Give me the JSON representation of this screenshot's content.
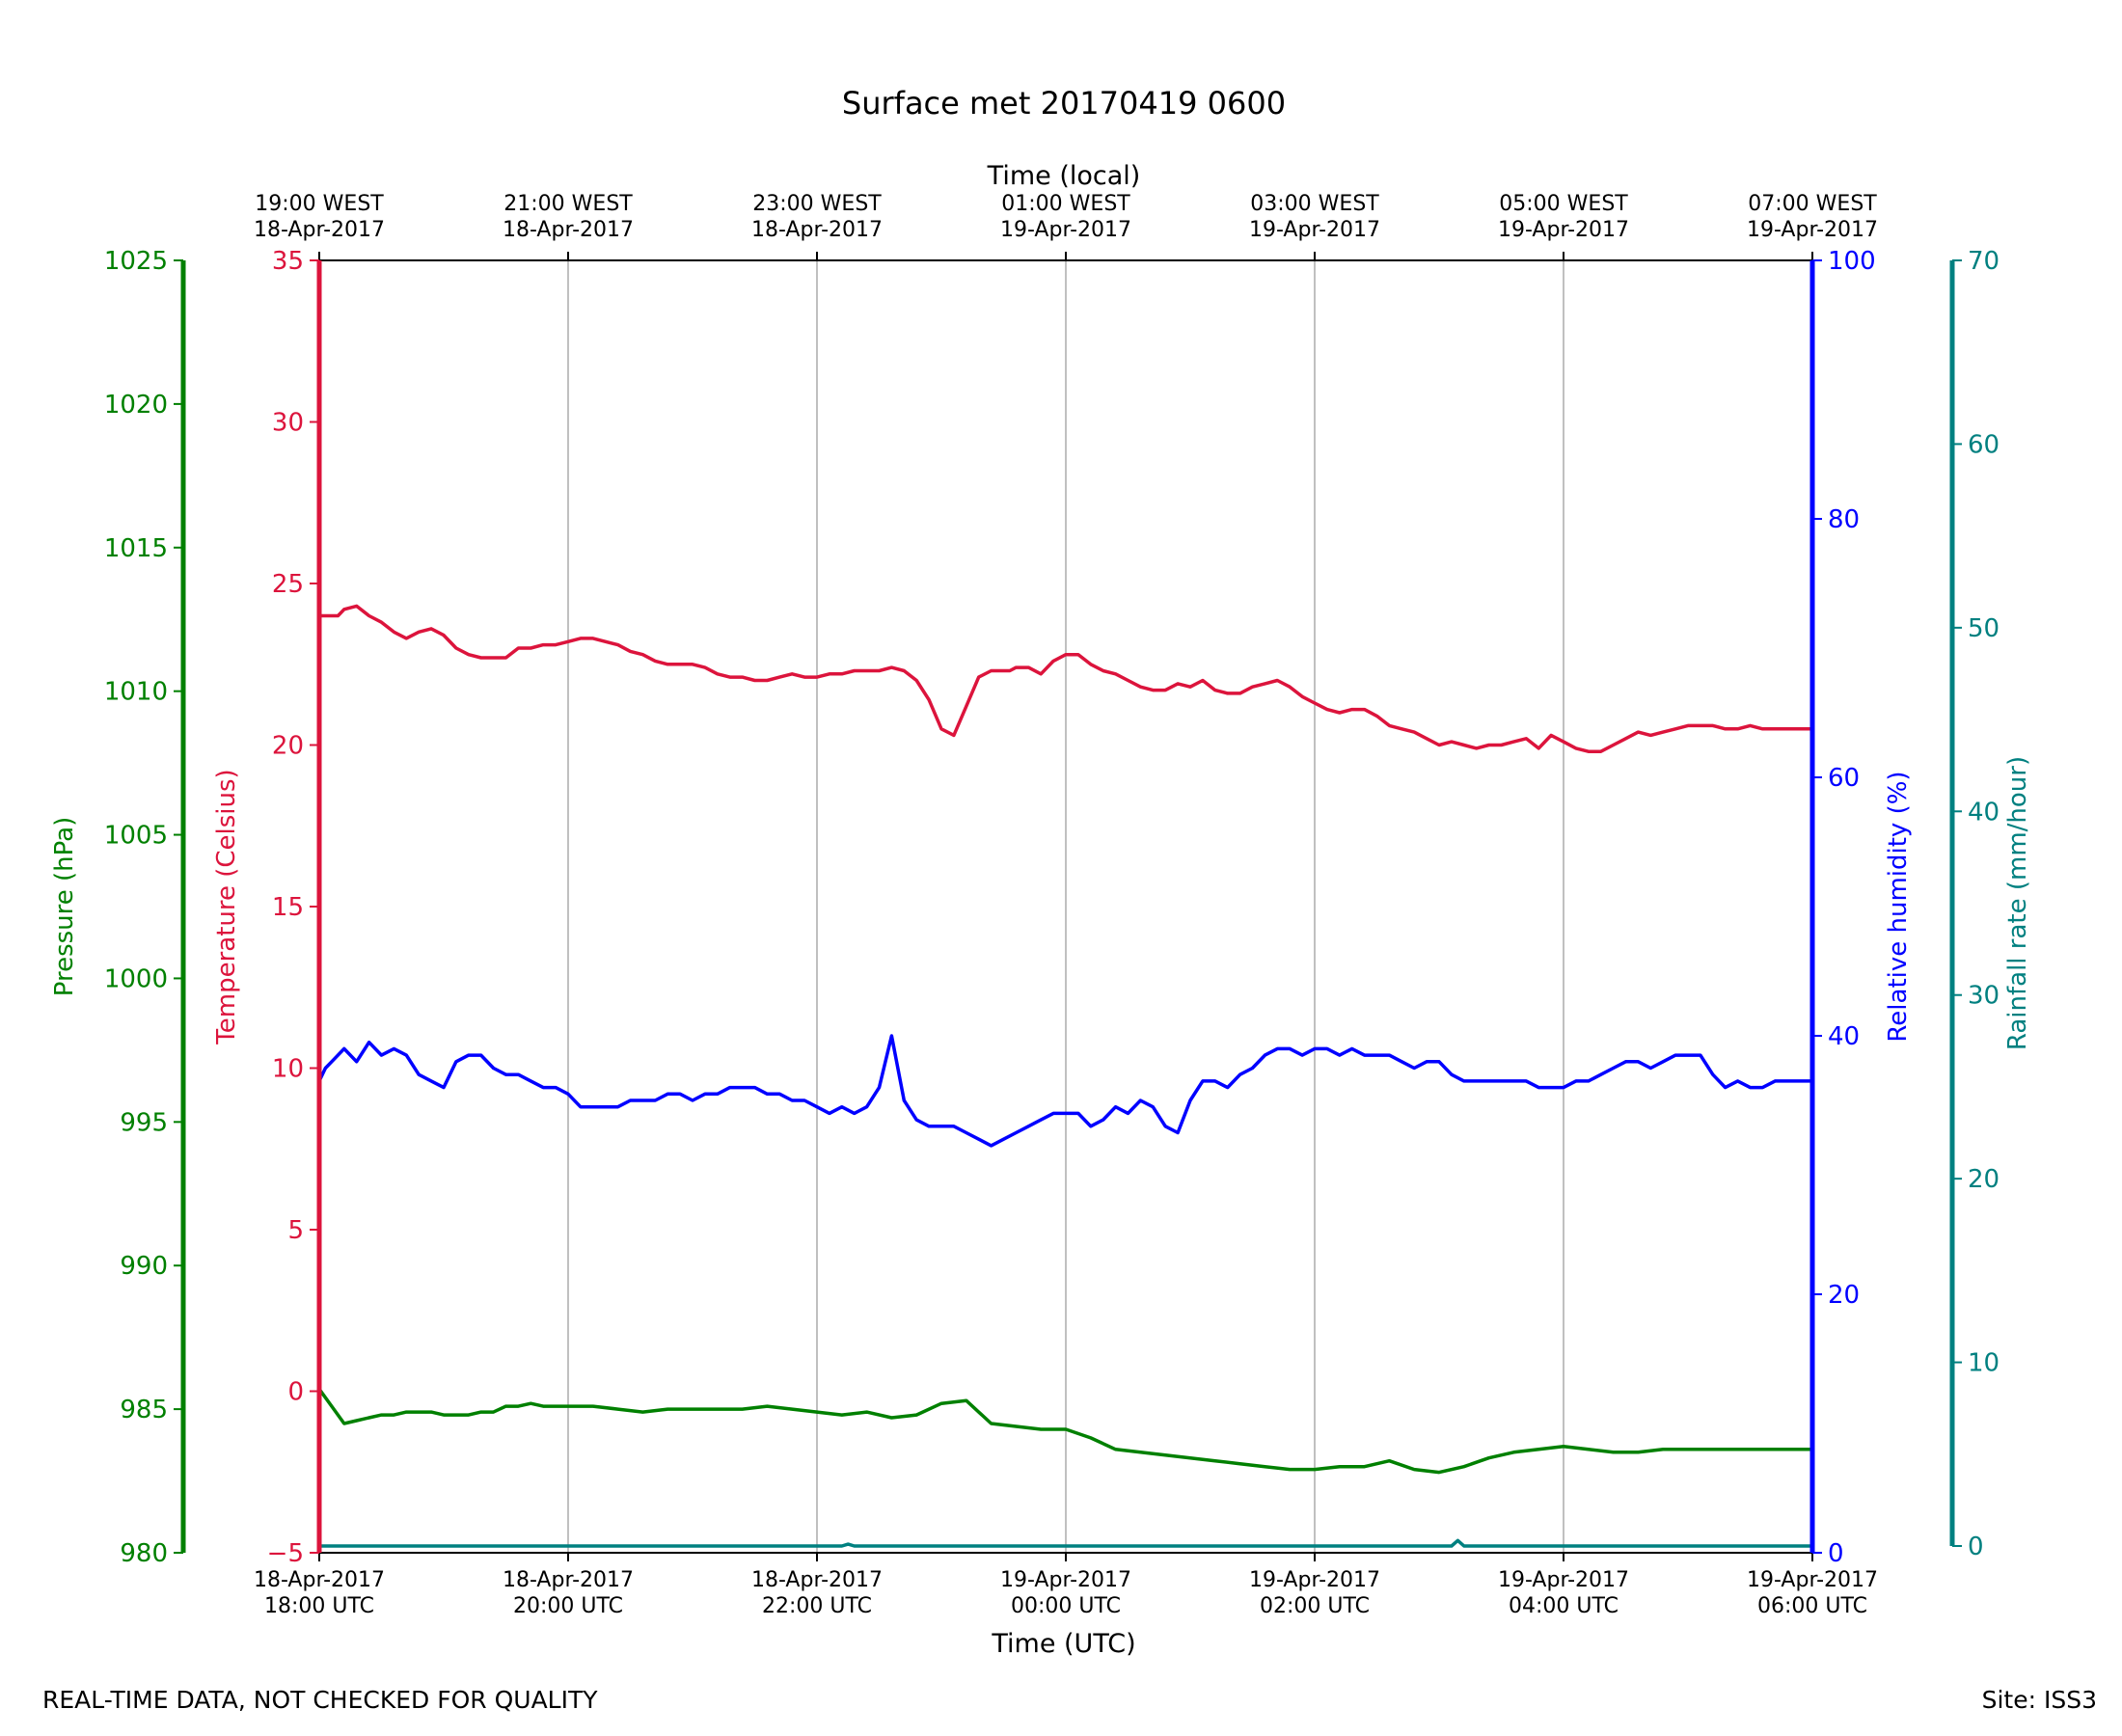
{
  "chart_data": {
    "type": "line",
    "title": "Surface met 20170419 0600",
    "xlabel": "Time (UTC)",
    "xlabel_top": "Time (local)",
    "x_range_hours_utc": [
      0,
      12
    ],
    "x_ticks_utc": [
      {
        "hour": 0,
        "line1": "18-Apr-2017",
        "line2": "18:00 UTC"
      },
      {
        "hour": 2,
        "line1": "18-Apr-2017",
        "line2": "20:00 UTC"
      },
      {
        "hour": 4,
        "line1": "18-Apr-2017",
        "line2": "22:00 UTC"
      },
      {
        "hour": 6,
        "line1": "19-Apr-2017",
        "line2": "00:00 UTC"
      },
      {
        "hour": 8,
        "line1": "19-Apr-2017",
        "line2": "02:00 UTC"
      },
      {
        "hour": 10,
        "line1": "19-Apr-2017",
        "line2": "04:00 UTC"
      },
      {
        "hour": 12,
        "line1": "19-Apr-2017",
        "line2": "06:00 UTC"
      }
    ],
    "x_ticks_local": [
      {
        "hour": 0,
        "line1": "19:00 WEST",
        "line2": "18-Apr-2017"
      },
      {
        "hour": 2,
        "line1": "21:00 WEST",
        "line2": "18-Apr-2017"
      },
      {
        "hour": 4,
        "line1": "23:00 WEST",
        "line2": "18-Apr-2017"
      },
      {
        "hour": 6,
        "line1": "01:00 WEST",
        "line2": "19-Apr-2017"
      },
      {
        "hour": 8,
        "line1": "03:00 WEST",
        "line2": "19-Apr-2017"
      },
      {
        "hour": 10,
        "line1": "05:00 WEST",
        "line2": "19-Apr-2017"
      },
      {
        "hour": 12,
        "line1": "07:00 WEST",
        "line2": "19-Apr-2017"
      }
    ],
    "axes": {
      "pressure": {
        "label": "Pressure (hPa)",
        "range": [
          980,
          1025
        ],
        "ticks": [
          "980",
          "985",
          "990",
          "995",
          "1000",
          "1005",
          "1010",
          "1015",
          "1020",
          "1025"
        ],
        "color": "#008000"
      },
      "temperature": {
        "label": "Temperature (Celsius)",
        "range": [
          -5,
          35
        ],
        "ticks": [
          "−5",
          "0",
          "5",
          "10",
          "15",
          "20",
          "25",
          "30",
          "35"
        ],
        "color": "#dc143c"
      },
      "humidity": {
        "label": "Relative humidity (%)",
        "range": [
          0,
          100
        ],
        "ticks": [
          "0",
          "20",
          "40",
          "60",
          "80",
          "100"
        ],
        "color": "#0000ff"
      },
      "rainfall": {
        "label": "Rainfall rate (mm/hour)",
        "range": [
          0,
          70
        ],
        "ticks": [
          "0",
          "10",
          "20",
          "30",
          "40",
          "50",
          "60",
          "70"
        ],
        "color": "#008080"
      }
    },
    "series": [
      {
        "name": "Temperature",
        "axis": "temperature",
        "color": "#dc143c",
        "x": [
          0,
          0.15,
          0.2,
          0.3,
          0.4,
          0.5,
          0.6,
          0.7,
          0.8,
          0.9,
          1.0,
          1.1,
          1.2,
          1.3,
          1.4,
          1.5,
          1.6,
          1.7,
          1.8,
          1.9,
          2.0,
          2.1,
          2.2,
          2.4,
          2.5,
          2.6,
          2.7,
          2.8,
          2.9,
          3.0,
          3.1,
          3.2,
          3.3,
          3.4,
          3.5,
          3.6,
          3.7,
          3.8,
          3.9,
          4.0,
          4.1,
          4.2,
          4.3,
          4.4,
          4.5,
          4.6,
          4.7,
          4.8,
          4.9,
          5.0,
          5.1,
          5.2,
          5.3,
          5.4,
          5.5,
          5.55,
          5.6,
          5.7,
          5.8,
          5.9,
          6.0,
          6.1,
          6.2,
          6.3,
          6.4,
          6.5,
          6.6,
          6.7,
          6.8,
          6.9,
          7.0,
          7.1,
          7.2,
          7.3,
          7.4,
          7.5,
          7.6,
          7.7,
          7.8,
          7.9,
          8.0,
          8.1,
          8.2,
          8.3,
          8.4,
          8.5,
          8.6,
          8.7,
          8.8,
          8.9,
          9.0,
          9.1,
          9.2,
          9.3,
          9.4,
          9.5,
          9.6,
          9.7,
          9.8,
          9.9,
          10.0,
          10.1,
          10.2,
          10.3,
          10.4,
          10.5,
          10.6,
          10.7,
          10.8,
          10.9,
          11.0,
          11.1,
          11.2,
          11.3,
          11.4,
          11.5,
          11.6,
          11.7,
          11.8,
          11.9,
          12.0
        ],
        "values": [
          24.0,
          24.0,
          24.2,
          24.3,
          24.0,
          23.8,
          23.5,
          23.3,
          23.5,
          23.6,
          23.4,
          23.0,
          22.8,
          22.7,
          22.7,
          22.7,
          23.0,
          23.0,
          23.1,
          23.1,
          23.2,
          23.3,
          23.3,
          23.1,
          22.9,
          22.8,
          22.6,
          22.5,
          22.5,
          22.5,
          22.4,
          22.2,
          22.1,
          22.1,
          22.0,
          22.0,
          22.1,
          22.2,
          22.1,
          22.1,
          22.2,
          22.2,
          22.3,
          22.3,
          22.3,
          22.4,
          22.3,
          22.0,
          21.4,
          20.5,
          20.3,
          21.2,
          22.1,
          22.3,
          22.3,
          22.3,
          22.4,
          22.4,
          22.2,
          22.6,
          22.8,
          22.8,
          22.5,
          22.3,
          22.2,
          22.0,
          21.8,
          21.7,
          21.7,
          21.9,
          21.8,
          22.0,
          21.7,
          21.6,
          21.6,
          21.8,
          21.9,
          22.0,
          21.8,
          21.5,
          21.3,
          21.1,
          21.0,
          21.1,
          21.1,
          20.9,
          20.6,
          20.5,
          20.4,
          20.2,
          20.0,
          20.1,
          20.0,
          19.9,
          20.0,
          20.0,
          20.1,
          20.2,
          19.9,
          20.3,
          20.1,
          19.9,
          19.8,
          19.8,
          20.0,
          20.2,
          20.4,
          20.3,
          20.4,
          20.5,
          20.6,
          20.6,
          20.6,
          20.5,
          20.5,
          20.6,
          20.5,
          20.5,
          20.5,
          20.5,
          20.5
        ]
      },
      {
        "name": "Relative humidity",
        "axis": "humidity",
        "color": "#0000ff",
        "x": [
          0,
          0.05,
          0.1,
          0.2,
          0.3,
          0.4,
          0.5,
          0.6,
          0.7,
          0.8,
          0.9,
          1.0,
          1.1,
          1.2,
          1.3,
          1.4,
          1.5,
          1.6,
          1.7,
          1.8,
          1.9,
          2.0,
          2.1,
          2.2,
          2.3,
          2.4,
          2.5,
          2.6,
          2.7,
          2.8,
          2.9,
          3.0,
          3.1,
          3.2,
          3.3,
          3.4,
          3.5,
          3.6,
          3.7,
          3.8,
          3.9,
          4.0,
          4.1,
          4.2,
          4.3,
          4.4,
          4.5,
          4.6,
          4.7,
          4.8,
          4.9,
          5.0,
          5.1,
          5.2,
          5.3,
          5.4,
          5.5,
          5.6,
          5.7,
          5.8,
          5.9,
          6.0,
          6.1,
          6.2,
          6.3,
          6.4,
          6.5,
          6.6,
          6.7,
          6.8,
          6.9,
          7.0,
          7.1,
          7.2,
          7.3,
          7.4,
          7.5,
          7.6,
          7.7,
          7.8,
          7.9,
          8.0,
          8.1,
          8.2,
          8.3,
          8.4,
          8.5,
          8.6,
          8.7,
          8.8,
          8.9,
          9.0,
          9.1,
          9.2,
          9.3,
          9.4,
          9.5,
          9.6,
          9.7,
          9.8,
          9.9,
          10.0,
          10.1,
          10.2,
          10.3,
          10.4,
          10.5,
          10.6,
          10.7,
          10.8,
          10.9,
          11.0,
          11.1,
          11.2,
          11.3,
          11.4,
          11.5,
          11.6,
          11.7,
          11.8,
          11.9,
          12.0
        ],
        "values": [
          36.5,
          37.5,
          38.0,
          39.0,
          38.0,
          39.5,
          38.5,
          39.0,
          38.5,
          37.0,
          36.5,
          36.0,
          38.0,
          38.5,
          38.5,
          37.5,
          37.0,
          37.0,
          36.5,
          36.0,
          36.0,
          35.5,
          34.5,
          34.5,
          34.5,
          34.5,
          35.0,
          35.0,
          35.0,
          35.5,
          35.5,
          35.0,
          35.5,
          35.5,
          36.0,
          36.0,
          36.0,
          35.5,
          35.5,
          35.0,
          35.0,
          34.5,
          34.0,
          34.5,
          34.0,
          34.5,
          36.0,
          40.0,
          35.0,
          33.5,
          33.0,
          33.0,
          33.0,
          32.5,
          32.0,
          31.5,
          32.0,
          32.5,
          33.0,
          33.5,
          34.0,
          34.0,
          34.0,
          33.0,
          33.5,
          34.5,
          34.0,
          35.0,
          34.5,
          33.0,
          32.5,
          35.0,
          36.5,
          36.5,
          36.0,
          37.0,
          37.5,
          38.5,
          39.0,
          39.0,
          38.5,
          39.0,
          39.0,
          38.5,
          39.0,
          38.5,
          38.5,
          38.5,
          38.0,
          37.5,
          38.0,
          38.0,
          37.0,
          36.5,
          36.5,
          36.5,
          36.5,
          36.5,
          36.5,
          36.0,
          36.0,
          36.0,
          36.5,
          36.5,
          37.0,
          37.5,
          38.0,
          38.0,
          37.5,
          38.0,
          38.5,
          38.5,
          38.5,
          37.0,
          36.0,
          36.5,
          36.0,
          36.0,
          36.5,
          36.5,
          36.5,
          36.5
        ]
      },
      {
        "name": "Pressure",
        "axis": "pressure",
        "color": "#008000",
        "x": [
          0,
          0.1,
          0.2,
          0.3,
          0.4,
          0.5,
          0.6,
          0.7,
          0.8,
          0.9,
          1.0,
          1.1,
          1.2,
          1.3,
          1.4,
          1.5,
          1.6,
          1.7,
          1.8,
          1.9,
          2.0,
          2.2,
          2.4,
          2.6,
          2.8,
          3.0,
          3.2,
          3.4,
          3.6,
          3.8,
          4.0,
          4.2,
          4.4,
          4.6,
          4.8,
          5.0,
          5.2,
          5.4,
          5.6,
          5.8,
          6.0,
          6.2,
          6.4,
          6.6,
          6.8,
          7.0,
          7.2,
          7.4,
          7.6,
          7.8,
          8.0,
          8.2,
          8.4,
          8.6,
          8.8,
          9.0,
          9.2,
          9.4,
          9.6,
          9.8,
          10.0,
          10.2,
          10.4,
          10.6,
          10.8,
          11.0,
          11.2,
          11.4,
          11.6,
          11.8,
          12.0
        ],
        "values": [
          985.7,
          985.1,
          984.5,
          984.6,
          984.7,
          984.8,
          984.8,
          984.9,
          984.9,
          984.9,
          984.8,
          984.8,
          984.8,
          984.9,
          984.9,
          985.1,
          985.1,
          985.2,
          985.1,
          985.1,
          985.1,
          985.1,
          985.0,
          984.9,
          985.0,
          985.0,
          985.0,
          985.0,
          985.1,
          985.0,
          984.9,
          984.8,
          984.9,
          984.7,
          984.8,
          985.2,
          985.3,
          984.5,
          984.4,
          984.3,
          984.3,
          984.0,
          983.6,
          983.5,
          983.4,
          983.3,
          983.2,
          983.1,
          983.0,
          982.9,
          982.9,
          983.0,
          983.0,
          983.2,
          982.9,
          982.8,
          983.0,
          983.3,
          983.5,
          983.6,
          983.7,
          983.6,
          983.5,
          983.5,
          983.6,
          983.6,
          983.6,
          983.6,
          983.6,
          983.6,
          983.6
        ]
      },
      {
        "name": "Rainfall rate",
        "axis": "rainfall",
        "color": "#008080",
        "x": [
          0,
          4.2,
          4.25,
          4.3,
          9.1,
          9.15,
          9.2,
          12.0
        ],
        "values": [
          0,
          0,
          0.1,
          0,
          0,
          0.3,
          0,
          0
        ]
      }
    ],
    "grid": "vertical",
    "legend": "none"
  },
  "footer": {
    "left": "REAL-TIME DATA, NOT CHECKED FOR QUALITY",
    "right": "Site: ISS3"
  }
}
